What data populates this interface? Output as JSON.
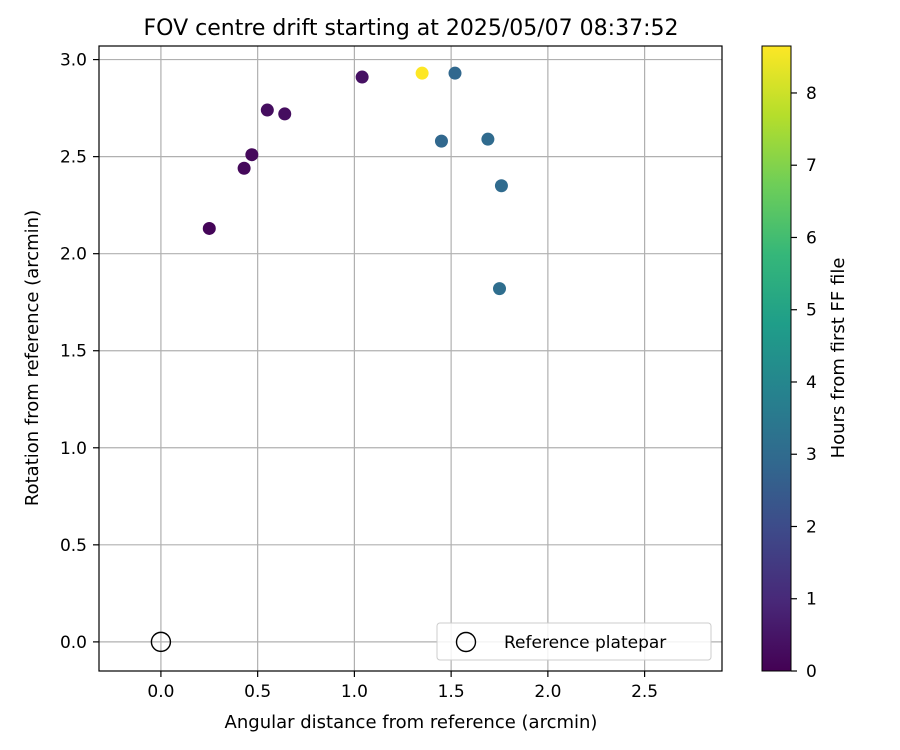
{
  "chart_data": {
    "type": "scatter",
    "title": "FOV centre drift starting at 2025/05/07 08:37:52",
    "xlabel": "Angular distance from reference (arcmin)",
    "ylabel": "Rotation from reference (arcmin)",
    "xlim": [
      -0.32,
      2.9
    ],
    "ylim": [
      -0.15,
      3.07
    ],
    "xticks": [
      {
        "value": 0.0,
        "label": "0.0"
      },
      {
        "value": 0.5,
        "label": "0.5"
      },
      {
        "value": 1.0,
        "label": "1.0"
      },
      {
        "value": 1.5,
        "label": "1.5"
      },
      {
        "value": 2.0,
        "label": "2.0"
      },
      {
        "value": 2.5,
        "label": "2.5"
      }
    ],
    "yticks": [
      {
        "value": 0.0,
        "label": "0.0"
      },
      {
        "value": 0.5,
        "label": "0.5"
      },
      {
        "value": 1.0,
        "label": "1.0"
      },
      {
        "value": 1.5,
        "label": "1.5"
      },
      {
        "value": 2.0,
        "label": "2.0"
      },
      {
        "value": 2.5,
        "label": "2.5"
      },
      {
        "value": 3.0,
        "label": "3.0"
      }
    ],
    "grid": true,
    "points": [
      {
        "x": 0.25,
        "y": 2.13,
        "hours": 0.1
      },
      {
        "x": 0.43,
        "y": 2.44,
        "hours": 0.2
      },
      {
        "x": 0.47,
        "y": 2.51,
        "hours": 0.2
      },
      {
        "x": 0.55,
        "y": 2.74,
        "hours": 0.3
      },
      {
        "x": 0.64,
        "y": 2.72,
        "hours": 0.3
      },
      {
        "x": 1.04,
        "y": 2.91,
        "hours": 0.4
      },
      {
        "x": 1.35,
        "y": 2.93,
        "hours": 8.7
      },
      {
        "x": 1.52,
        "y": 2.93,
        "hours": 2.9
      },
      {
        "x": 1.45,
        "y": 2.58,
        "hours": 2.9
      },
      {
        "x": 1.69,
        "y": 2.59,
        "hours": 3.0
      },
      {
        "x": 1.76,
        "y": 2.35,
        "hours": 3.0
      },
      {
        "x": 1.75,
        "y": 1.82,
        "hours": 3.1
      }
    ],
    "reference_point": {
      "x": 0.0,
      "y": 0.0,
      "color": "#000000"
    },
    "legend": {
      "position": "lower-right",
      "entries": [
        {
          "label": "Reference platepar",
          "marker": "open-circle"
        }
      ]
    },
    "colorbar": {
      "label": "Hours from first FF file",
      "range": [
        0,
        8.65
      ],
      "colormap": "viridis",
      "colors": [
        "#440154",
        "#482878",
        "#3e4989",
        "#31688e",
        "#26828e",
        "#1f9e89",
        "#35b779",
        "#6ece58",
        "#b5de2b",
        "#fde725"
      ],
      "ticks": [
        {
          "value": 0,
          "label": "0"
        },
        {
          "value": 1,
          "label": "1"
        },
        {
          "value": 2,
          "label": "2"
        },
        {
          "value": 3,
          "label": "3"
        },
        {
          "value": 4,
          "label": "4"
        },
        {
          "value": 5,
          "label": "5"
        },
        {
          "value": 6,
          "label": "6"
        },
        {
          "value": 7,
          "label": "7"
        },
        {
          "value": 8,
          "label": "8"
        }
      ]
    }
  }
}
